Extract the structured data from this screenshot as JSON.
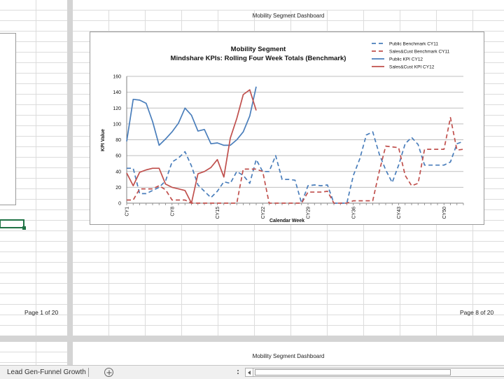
{
  "workbook": {
    "sheet_tab": "Lead Gen-Funnel Growth"
  },
  "pages": {
    "right_top": {
      "header": "Mobility Segment Dashboard",
      "footer": "Page 8 of 20"
    },
    "left_top": {
      "footer": "Page 1 of 20"
    },
    "right_bottom": {
      "header": "Mobility Segment Dashboard"
    }
  },
  "colors": {
    "blue": "#4a7ebb",
    "red": "#c0504d",
    "selection": "#217346"
  },
  "chart_data": {
    "type": "line",
    "title": "Mobility Segment",
    "subtitle": "Mindshare KPIs: Rolling Four Week Totals (Benchmark)",
    "xlabel": "Calendar Week",
    "ylabel": "KPI Value",
    "ylim": [
      0,
      160
    ],
    "yticks": [
      0,
      20,
      40,
      60,
      80,
      100,
      120,
      140,
      160
    ],
    "xlim": [
      1,
      53
    ],
    "xticks": [
      1,
      8,
      15,
      22,
      29,
      36,
      43,
      50
    ],
    "xtick_labels": [
      "CY1",
      "CY8",
      "CY15",
      "CY22",
      "CY29",
      "CY36",
      "CY43",
      "CY50"
    ],
    "grid": "horizontal",
    "legend_position": "top-right",
    "series": [
      {
        "name": "Public Benchmark CY11",
        "color": "#4a7ebb",
        "dash": true,
        "x": [
          1,
          2,
          3,
          4,
          5,
          6,
          7,
          8,
          9,
          10,
          11,
          12,
          13,
          14,
          15,
          16,
          17,
          18,
          19,
          20,
          21,
          22,
          23,
          24,
          25,
          26,
          27,
          28,
          29,
          30,
          31,
          32,
          33,
          34,
          35,
          36,
          37,
          38,
          39,
          40,
          41,
          42,
          43,
          44,
          45,
          46,
          47,
          48,
          49,
          50,
          51,
          52,
          53
        ],
        "values": [
          44,
          44,
          12,
          12,
          16,
          20,
          28,
          52,
          57,
          65,
          47,
          23,
          15,
          7,
          15,
          27,
          25,
          40,
          35,
          25,
          55,
          40,
          40,
          60,
          30,
          30,
          29,
          0,
          22,
          23,
          22,
          23,
          0,
          0,
          0,
          35,
          56,
          86,
          90,
          62,
          42,
          26,
          48,
          75,
          83,
          74,
          48,
          48,
          48,
          48,
          52,
          75,
          78
        ]
      },
      {
        "name": "Sales&Cust Benchmark CY11",
        "color": "#c0504d",
        "dash": true,
        "x": [
          1,
          2,
          3,
          4,
          5,
          6,
          7,
          8,
          9,
          10,
          11,
          12,
          13,
          14,
          15,
          16,
          17,
          18,
          19,
          20,
          21,
          22,
          23,
          24,
          25,
          26,
          27,
          28,
          29,
          30,
          31,
          32,
          33,
          34,
          35,
          36,
          37,
          38,
          39,
          40,
          41,
          42,
          43,
          44,
          45,
          46,
          47,
          48,
          49,
          50,
          51,
          52,
          53
        ],
        "values": [
          4,
          4,
          18,
          18,
          18,
          22,
          17,
          4,
          4,
          4,
          0,
          0,
          0,
          0,
          0,
          0,
          0,
          0,
          43,
          43,
          43,
          40,
          0,
          0,
          0,
          0,
          0,
          0,
          14,
          14,
          14,
          15,
          0,
          0,
          0,
          3,
          3,
          3,
          3,
          40,
          72,
          71,
          70,
          35,
          22,
          25,
          68,
          68,
          68,
          68,
          108,
          67,
          68
        ]
      },
      {
        "name": "Public KPI CY12",
        "color": "#4a7ebb",
        "dash": false,
        "x": [
          1,
          2,
          3,
          4,
          5,
          6,
          7,
          8,
          9,
          10,
          11,
          12,
          13,
          14,
          15,
          16,
          17,
          18,
          19,
          20,
          21
        ],
        "values": [
          78,
          131,
          130,
          126,
          103,
          73,
          81,
          90,
          101,
          120,
          111,
          91,
          93,
          75,
          76,
          73,
          73,
          80,
          90,
          110,
          147
        ]
      },
      {
        "name": "Sales&Cust KPI CY12",
        "color": "#c0504d",
        "dash": false,
        "x": [
          1,
          2,
          3,
          4,
          5,
          6,
          7,
          8,
          9,
          10,
          11,
          12,
          13,
          14,
          15,
          16,
          17,
          18,
          19,
          20,
          21
        ],
        "values": [
          38,
          22,
          39,
          42,
          44,
          44,
          24,
          20,
          18,
          16,
          0,
          37,
          40,
          45,
          55,
          33,
          82,
          107,
          137,
          143,
          117
        ]
      }
    ]
  }
}
